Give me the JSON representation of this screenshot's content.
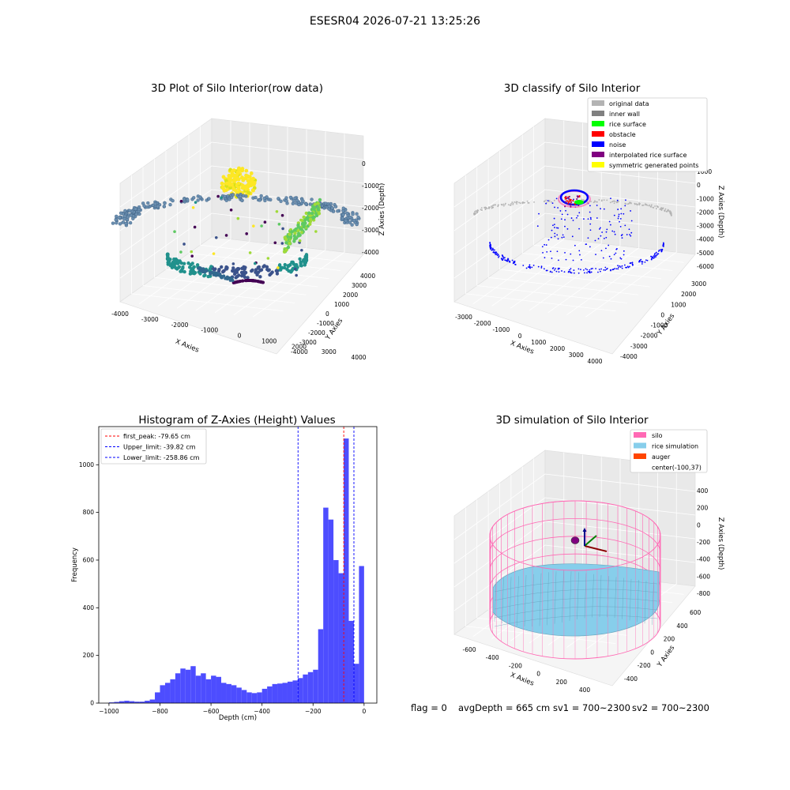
{
  "figure": {
    "suptitle": "ESESR04 2026-07-21 13:25:26",
    "status": {
      "flag": "flag = 0",
      "avg_depth": "avgDepth = 665 cm",
      "sv1": "sv1 = 700~2300",
      "sv2": "sv2 = 700~2300"
    }
  },
  "panels": {
    "raw": {
      "title": "3D Plot of Silo Interior(row data)",
      "xlabel": "X Axies",
      "ylabel": "Y Axies",
      "zlabel": "Z Axies (Depth)",
      "xticks": [
        "-4000",
        "-3000",
        "-2000",
        "-1000",
        "0",
        "1000",
        "2000",
        "3000",
        "4000"
      ],
      "yticks": [
        "-4000",
        "-3000",
        "-2000",
        "-1000",
        "0",
        "1000",
        "2000",
        "3000",
        "4000"
      ],
      "zticks": [
        "0",
        "-1000",
        "-2000",
        "-3000",
        "-4000"
      ]
    },
    "classify": {
      "title": "3D classify of Silo Interior",
      "xlabel": "X Axies",
      "ylabel": "Y Axies",
      "zlabel": "Z Axies (Depth)",
      "xticks": [
        "-3000",
        "-2000",
        "-1000",
        "0",
        "1000",
        "2000",
        "3000",
        "4000"
      ],
      "yticks": [
        "-4000",
        "-3000",
        "-2000",
        "-1000",
        "0",
        "1000",
        "2000",
        "3000"
      ],
      "zticks": [
        "1000",
        "0",
        "-1000",
        "-2000",
        "-3000",
        "-4000",
        "-5000",
        "-6000"
      ],
      "legend": [
        {
          "label": "original data",
          "color": "#b3b3b3"
        },
        {
          "label": "inner wall",
          "color": "#808080"
        },
        {
          "label": "rice surface",
          "color": "#00ff00"
        },
        {
          "label": "obstacle",
          "color": "#ff0000"
        },
        {
          "label": "noise",
          "color": "#0000ff"
        },
        {
          "label": "interpolated rice surface",
          "color": "#800080"
        },
        {
          "label": "symmetric generated points",
          "color": "#ffff00"
        }
      ]
    },
    "simulation": {
      "title": "3D simulation of Silo Interior",
      "xlabel": "X Axies",
      "ylabel": "Y Axies",
      "zlabel": "Z Axies (Depth)",
      "xticks": [
        "-600",
        "-400",
        "-200",
        "0",
        "200",
        "400"
      ],
      "yticks": [
        "-400",
        "-200",
        "0",
        "200",
        "400",
        "600"
      ],
      "zticks": [
        "400",
        "200",
        "0",
        "-200",
        "-400",
        "-600",
        "-800"
      ],
      "legend": [
        {
          "label": "silo",
          "color": "#ff69b4"
        },
        {
          "label": "rice simulation",
          "color": "#87ceeb"
        },
        {
          "label": "auger",
          "color": "#ff4500"
        },
        {
          "label": "center(-100,37)",
          "color": ""
        }
      ]
    }
  },
  "chart_data": {
    "type": "bar",
    "title": "Histogram of Z-Axies (Height) Values",
    "xlabel": "Depth (cm)",
    "ylabel": "Frequency",
    "bar_color": "#4d4dff",
    "xlim": [
      -1040,
      50
    ],
    "ylim": [
      0,
      1160
    ],
    "xticks": [
      -1000,
      -800,
      -600,
      -400,
      -200,
      0
    ],
    "yticks": [
      0,
      200,
      400,
      600,
      800,
      1000
    ],
    "bin_width": 20,
    "bin_starts": [
      -1000,
      -980,
      -960,
      -940,
      -920,
      -900,
      -880,
      -860,
      -840,
      -820,
      -800,
      -780,
      -760,
      -740,
      -720,
      -700,
      -680,
      -660,
      -640,
      -620,
      -600,
      -580,
      -560,
      -540,
      -520,
      -500,
      -480,
      -460,
      -440,
      -420,
      -400,
      -380,
      -360,
      -340,
      -320,
      -300,
      -280,
      -260,
      -240,
      -220,
      -200,
      -180,
      -160,
      -140,
      -120,
      -100,
      -80,
      -60,
      -40,
      -20
    ],
    "values": [
      3,
      5,
      8,
      10,
      8,
      6,
      6,
      10,
      15,
      45,
      75,
      85,
      100,
      125,
      145,
      140,
      155,
      115,
      125,
      100,
      115,
      110,
      85,
      80,
      75,
      65,
      55,
      45,
      42,
      45,
      60,
      70,
      80,
      82,
      85,
      90,
      95,
      105,
      120,
      130,
      140,
      310,
      820,
      770,
      600,
      545,
      1110,
      345,
      165,
      575
    ],
    "vlines": [
      {
        "x": -79.65,
        "color": "#ff0000",
        "label": "first_peak: -79.65 cm"
      },
      {
        "x": -39.82,
        "color": "#0000ff",
        "label": "Upper_limit: -39.82 cm"
      },
      {
        "x": -258.86,
        "color": "#0000ff",
        "label": "Lower_limit: -258.86 cm"
      }
    ],
    "legend_position": "upper-left"
  }
}
